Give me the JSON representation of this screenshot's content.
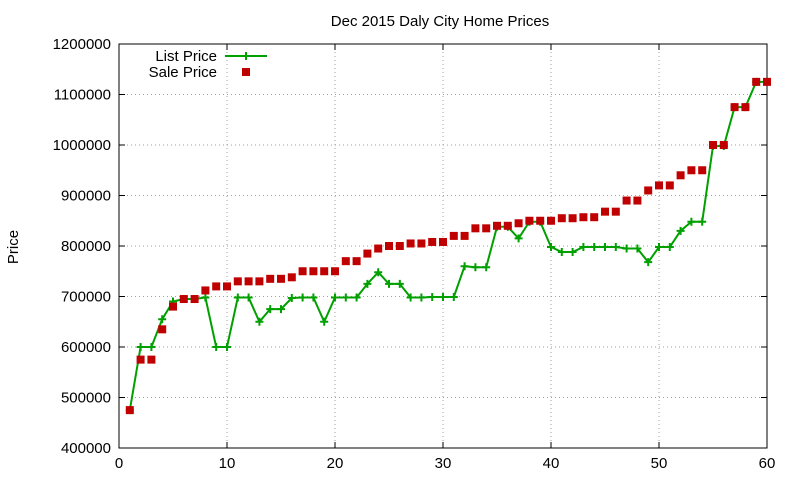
{
  "chart_data": {
    "type": "line",
    "title": "Dec 2015 Daly City Home Prices",
    "xlabel": "",
    "ylabel": "Price",
    "xlim": [
      0,
      60
    ],
    "ylim": [
      400000,
      1200000
    ],
    "xticks": [
      0,
      10,
      20,
      30,
      40,
      50,
      60
    ],
    "yticks": [
      400000,
      500000,
      600000,
      700000,
      800000,
      900000,
      1000000,
      1100000,
      1200000
    ],
    "grid": true,
    "legend_position": "top-left",
    "x": [
      1,
      2,
      3,
      4,
      5,
      6,
      7,
      8,
      9,
      10,
      11,
      12,
      13,
      14,
      15,
      16,
      17,
      18,
      19,
      20,
      21,
      22,
      23,
      24,
      25,
      26,
      27,
      28,
      29,
      30,
      31,
      32,
      33,
      34,
      35,
      36,
      37,
      38,
      39,
      40,
      41,
      42,
      43,
      44,
      45,
      46,
      47,
      48,
      49,
      50,
      51,
      52,
      53,
      54,
      55,
      56,
      57,
      58,
      59,
      60
    ],
    "series": [
      {
        "name": "List Price",
        "style": "line-cross",
        "color": "#00a000",
        "values": [
          475000,
          600000,
          600000,
          655000,
          690000,
          695000,
          695000,
          698000,
          600000,
          600000,
          698000,
          698000,
          650000,
          675000,
          675000,
          697000,
          698000,
          698000,
          650000,
          698000,
          698000,
          698000,
          725000,
          748000,
          725000,
          725000,
          698000,
          698000,
          699000,
          699000,
          699000,
          760000,
          758000,
          758000,
          838000,
          838000,
          815000,
          848000,
          848000,
          798000,
          788000,
          788000,
          798000,
          798000,
          798000,
          798000,
          795000,
          795000,
          768000,
          798000,
          798000,
          830000,
          848000,
          848000,
          998000,
          998000,
          1075000,
          1075000,
          1125000,
          1125000
        ]
      },
      {
        "name": "Sale Price",
        "style": "square",
        "color": "#c00000",
        "values": [
          475000,
          575000,
          575000,
          635000,
          680000,
          695000,
          695000,
          712000,
          720000,
          720000,
          730000,
          730000,
          730000,
          735000,
          735000,
          738000,
          750000,
          750000,
          750000,
          750000,
          770000,
          770000,
          785000,
          795000,
          800000,
          800000,
          805000,
          805000,
          808000,
          808000,
          820000,
          820000,
          835000,
          835000,
          840000,
          840000,
          845000,
          850000,
          850000,
          850000,
          855000,
          855000,
          857000,
          857000,
          868000,
          868000,
          890000,
          890000,
          910000,
          920000,
          920000,
          940000,
          950000,
          950000,
          1000000,
          1000000,
          1075000,
          1075000,
          1125000,
          1125000
        ]
      }
    ]
  }
}
